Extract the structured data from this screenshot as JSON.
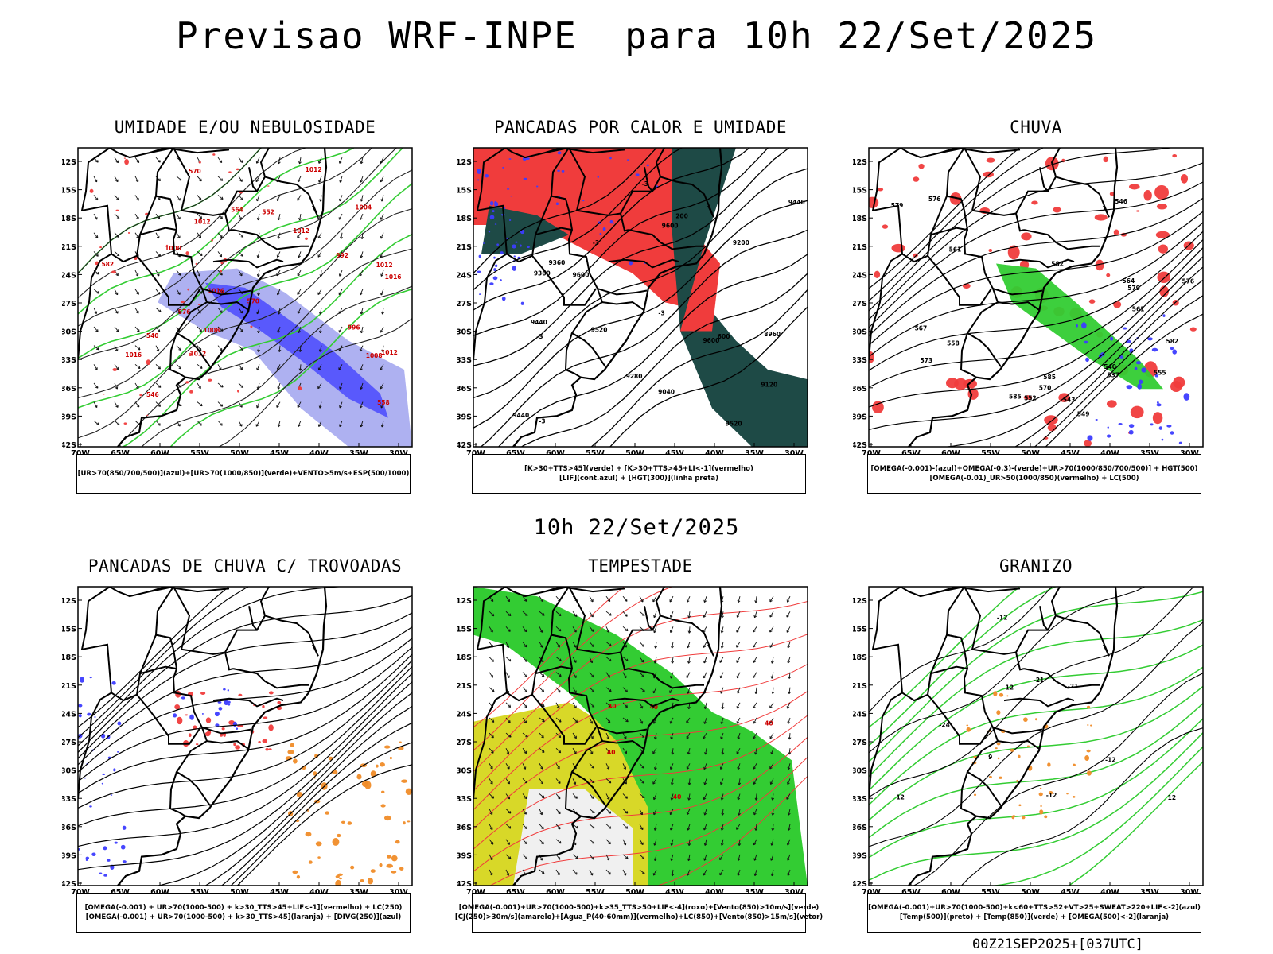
{
  "title": "Previsao WRF-INPE  para 10h 22/Set/2025",
  "subtitle": "10h 22/Set/2025",
  "footer": "00Z21SEP2025+[037UTC]",
  "axes": {
    "lat_labels": [
      "12S",
      "15S",
      "18S",
      "21S",
      "24S",
      "27S",
      "30S",
      "33S",
      "36S",
      "39S",
      "42S"
    ],
    "lon_labels": [
      "70W",
      "65W",
      "60W",
      "55W",
      "50W",
      "45W",
      "40W",
      "35W",
      "30W"
    ]
  },
  "panels": [
    {
      "id": "umidade",
      "title": "UMIDADE E/OU NEBULOSIDADE",
      "legend": [
        "[UR>70(850/700/500)](azul)+[UR>70(1000/850)](verde)+VENTO>5m/s+ESP(500/1000)"
      ],
      "labels": [
        "1012",
        "1012",
        "1012",
        "1016",
        "1016",
        "1012",
        "1008",
        "1012",
        "1008",
        "1004",
        "1000",
        "996",
        "992",
        "1012",
        "1016",
        "570",
        "576",
        "582",
        "570",
        "564",
        "558",
        "552",
        "546",
        "540"
      ]
    },
    {
      "id": "pancadas-calor",
      "title": "PANCADAS POR CALOR E UMIDADE",
      "legend": [
        "[K>30+TTS>45](verde) + [K>30+TTS>45+LI<-1](vermelho)",
        "[LIF](cont.azul) + [HGT(300)](linha preta)"
      ],
      "labels": [
        "9600",
        "9600",
        "9520",
        "9440",
        "9360",
        "9280",
        "9200",
        "9120",
        "9040",
        "8960",
        "9360",
        "9440",
        "9520",
        "9600",
        "9440",
        "600",
        "200",
        "-3",
        "-3",
        "-3",
        "-3",
        "-3"
      ]
    },
    {
      "id": "chuva",
      "title": "CHUVA",
      "legend": [
        "[OMEGA(-0.001)-(azul)+OMEGA(-0.3)-(verde)+UR>70(1000/850/700/500)] + HGT(500)",
        "[OMEGA(-0.01)_UR>50(1000/850)(vermelho) + LC(500)"
      ],
      "labels": [
        "585",
        "585",
        "582",
        "579",
        "576",
        "573",
        "570",
        "567",
        "564",
        "561",
        "558",
        "555",
        "552",
        "549",
        "546",
        "543",
        "540",
        "537",
        "582",
        "579",
        "576",
        "561"
      ]
    },
    {
      "id": "pancadas-trovoadas",
      "title": "PANCADAS DE CHUVA C/ TROVOADAS",
      "legend": [
        "[OMEGA(-0.001) + UR>70(1000-500) + k>30_TTS>45+LIF<-1](vermelho) + LC(250)",
        "[OMEGA(-0.001) + UR>70(1000-500) + k>30_TTS>45](laranja) + [DIVG(250)](azul)"
      ],
      "labels": []
    },
    {
      "id": "tempestade",
      "title": "TEMPESTADE",
      "legend": [
        "[OMEGA(-0.001)+UR>70(1000-500)+k>35_TTS>50+LIF<-4](roxo)+[Vento(850)>10m/s](verde)",
        "[CJ(250)>30m/s](amarelo)+[Agua_P(40-60mm)](vermelho)+LC(850)+[Vento(850)>15m/s](vetor)"
      ],
      "labels": [
        "40",
        "40",
        "40",
        "40",
        "40"
      ]
    },
    {
      "id": "granizo",
      "title": "GRANIZO",
      "legend": [
        "[OMEGA(-0.001)+UR>70(1000-500)+k<60+TTS>52+VT>25+SWEAT>220+LIF<-2](azul)",
        "[Temp(500)](preto) + [Temp(850)](verde) + [OMEGA(500)<-2](laranja)"
      ],
      "labels": [
        "-12",
        "-12",
        "-21",
        "-21",
        "-24",
        "-12",
        "12",
        "12",
        "9",
        "12"
      ]
    }
  ],
  "colors": {
    "blue": "#3c3cff",
    "lightblue": "#a5a8f0",
    "green": "#33cc33",
    "red": "#f03c3c",
    "darkgreen": "#1e4a46",
    "orange": "#f08c28",
    "yellow": "#d8d828",
    "black": "#000000"
  }
}
